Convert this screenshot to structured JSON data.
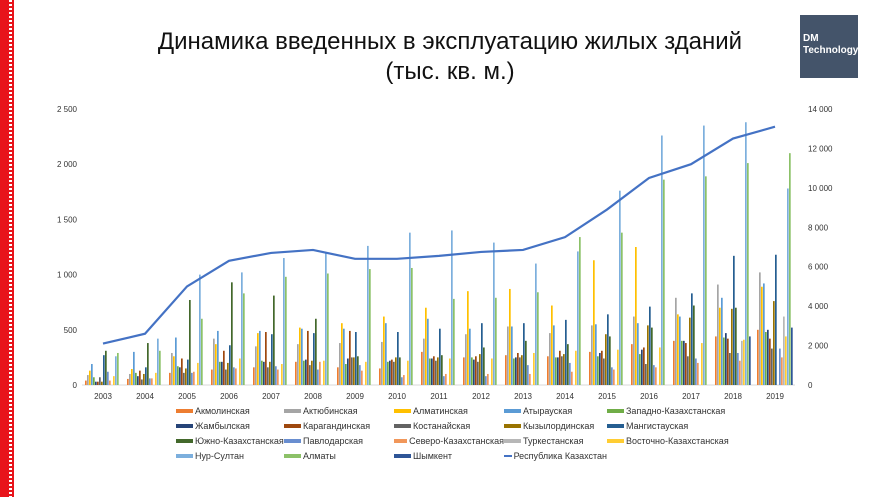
{
  "title_line1": "Динамика введенных в эксплуатацию жилых зданий",
  "title_line2": "(тыс. кв. м.)",
  "logo_text": [
    "DM",
    "Technology"
  ],
  "chart_data": {
    "type": "bar",
    "title": "Динамика введенных в эксплуатацию жилых зданий (тыс. кв. м.)",
    "categories": [
      "2003",
      "2004",
      "2005",
      "2006",
      "2007",
      "2008",
      "2009",
      "2010",
      "2011",
      "2012",
      "2013",
      "2014",
      "2015",
      "2016",
      "2017",
      "2018",
      "2019"
    ],
    "y_left": {
      "range": [
        0,
        2500
      ],
      "ticks": [
        "0",
        "500",
        "1 000",
        "1 500",
        "2 000",
        "2 500"
      ],
      "tick_values": [
        0,
        500,
        1000,
        1500,
        2000,
        2500
      ]
    },
    "y_right": {
      "range": [
        0,
        14000
      ],
      "ticks": [
        "0",
        "2 000",
        "4 000",
        "6 000",
        "8 000",
        "10 000",
        "12 000",
        "14 000"
      ],
      "tick_values": [
        0,
        2000,
        4000,
        6000,
        8000,
        10000,
        12000,
        14000
      ]
    },
    "legend_position": "bottom",
    "grid": false,
    "series": [
      {
        "name": "Акмолинская",
        "color": "#ed7d31",
        "values": [
          40,
          55,
          110,
          140,
          160,
          210,
          160,
          150,
          300,
          250,
          270,
          260,
          300,
          370,
          400,
          440,
          500
        ]
      },
      {
        "name": "Актюбинская",
        "color": "#a5a5a5",
        "values": [
          90,
          100,
          290,
          420,
          350,
          370,
          380,
          390,
          420,
          460,
          530,
          470,
          540,
          620,
          790,
          910,
          1020
        ]
      },
      {
        "name": "Алматинская",
        "color": "#ffc000",
        "values": [
          130,
          145,
          260,
          370,
          470,
          520,
          560,
          620,
          700,
          850,
          870,
          720,
          1130,
          1250,
          640,
          700,
          890
        ]
      },
      {
        "name": "Атырауская",
        "color": "#5b9bd5",
        "values": [
          190,
          300,
          430,
          490,
          490,
          510,
          510,
          560,
          600,
          510,
          530,
          540,
          550,
          560,
          620,
          790,
          920
        ]
      },
      {
        "name": "Западно-Казахстанская",
        "color": "#70ad47",
        "values": [
          70,
          110,
          170,
          210,
          220,
          220,
          190,
          210,
          240,
          250,
          240,
          250,
          260,
          280,
          400,
          430,
          480
        ]
      },
      {
        "name": "Жамбылская",
        "color": "#264478",
        "values": [
          30,
          80,
          160,
          210,
          210,
          230,
          240,
          220,
          240,
          230,
          250,
          250,
          290,
          320,
          400,
          470,
          500
        ]
      },
      {
        "name": "Карагандинская",
        "color": "#9e480e",
        "values": [
          30,
          130,
          240,
          310,
          480,
          490,
          490,
          230,
          260,
          260,
          290,
          310,
          310,
          340,
          380,
          420,
          420
        ]
      },
      {
        "name": "Костанайская",
        "color": "#636363",
        "values": [
          70,
          50,
          110,
          140,
          160,
          180,
          250,
          210,
          220,
          210,
          250,
          260,
          240,
          190,
          260,
          290,
          330
        ]
      },
      {
        "name": "Кызылординская",
        "color": "#997300",
        "values": [
          30,
          100,
          150,
          200,
          210,
          220,
          250,
          250,
          250,
          280,
          270,
          280,
          460,
          540,
          610,
          690,
          760
        ]
      },
      {
        "name": "Мангистауская",
        "color": "#255e91",
        "values": [
          270,
          160,
          230,
          360,
          460,
          470,
          480,
          480,
          510,
          560,
          560,
          590,
          640,
          710,
          830,
          1170,
          1180
        ]
      },
      {
        "name": "Южно-Казахстанская",
        "color": "#43682b",
        "values": [
          310,
          380,
          770,
          930,
          810,
          600,
          260,
          250,
          270,
          340,
          400,
          370,
          440,
          520,
          720,
          700,
          null
        ]
      },
      {
        "name": "Павлодарская",
        "color": "#698ed0",
        "values": [
          120,
          60,
          110,
          160,
          170,
          140,
          180,
          70,
          80,
          80,
          180,
          200,
          160,
          180,
          240,
          290,
          330
        ]
      },
      {
        "name": "Северо-Казахстанская",
        "color": "#f1975a",
        "values": [
          40,
          60,
          120,
          150,
          140,
          210,
          130,
          90,
          100,
          100,
          100,
          120,
          140,
          160,
          200,
          220,
          250
        ]
      },
      {
        "name": "Туркестанская",
        "color": "#b7b7b7",
        "values": [
          null,
          null,
          null,
          null,
          null,
          null,
          null,
          null,
          null,
          null,
          null,
          null,
          null,
          null,
          null,
          400,
          620
        ]
      },
      {
        "name": "Восточно-Казахстанская",
        "color": "#ffcd33",
        "values": [
          80,
          110,
          200,
          240,
          190,
          220,
          210,
          220,
          240,
          240,
          290,
          310,
          320,
          340,
          380,
          410,
          440
        ]
      },
      {
        "name": "Нур-Султан",
        "color": "#7cafdd",
        "values": [
          260,
          420,
          1000,
          1020,
          1150,
          1200,
          1260,
          1380,
          1400,
          1290,
          1100,
          1210,
          1760,
          2260,
          2350,
          2380,
          1780
        ]
      },
      {
        "name": "Алматы",
        "color": "#8cc168",
        "values": [
          290,
          310,
          600,
          830,
          980,
          1010,
          1050,
          1060,
          780,
          790,
          840,
          1340,
          1380,
          1860,
          1890,
          2010,
          2100
        ]
      },
      {
        "name": "Шымкент",
        "color": "#2e5597",
        "values": [
          null,
          null,
          null,
          null,
          null,
          null,
          null,
          null,
          null,
          null,
          null,
          null,
          null,
          null,
          null,
          440,
          520
        ]
      }
    ],
    "line_series": {
      "name": "Республика Казахстан",
      "color": "#4472c4",
      "axis": "right",
      "values": [
        2100,
        2600,
        5000,
        6300,
        6700,
        6850,
        6400,
        6400,
        6550,
        6750,
        6850,
        7500,
        8900,
        10500,
        11200,
        12500,
        13100
      ]
    }
  }
}
